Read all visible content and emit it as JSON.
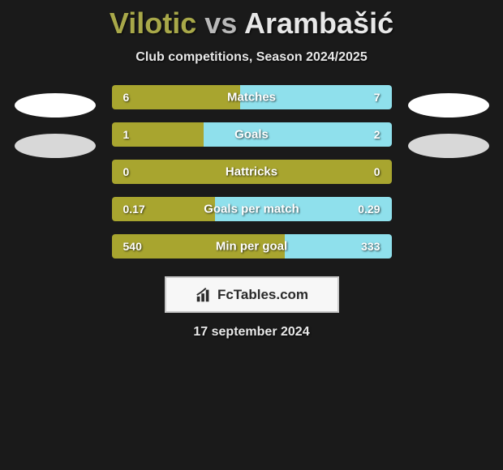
{
  "title": {
    "player1": "Vilotic",
    "vs": "vs",
    "player2": "Arambašić"
  },
  "subtitle": "Club competitions, Season 2024/2025",
  "colors": {
    "player1": "#a8a52f",
    "player2": "#8fe0ec",
    "player1_light": "#b8b849",
    "background": "#1a1a1a",
    "ellipse_white": "#ffffff",
    "ellipse_gray": "#d8d8d8"
  },
  "bars": [
    {
      "label": "Matches",
      "left_val": "6",
      "right_val": "7",
      "left_pct": 46,
      "right_pct": 54
    },
    {
      "label": "Goals",
      "left_val": "1",
      "right_val": "2",
      "left_pct": 33,
      "right_pct": 67
    },
    {
      "label": "Hattricks",
      "left_val": "0",
      "right_val": "0",
      "left_pct": 100,
      "right_pct": 0
    },
    {
      "label": "Goals per match",
      "left_val": "0.17",
      "right_val": "0.29",
      "left_pct": 37,
      "right_pct": 63
    },
    {
      "label": "Min per goal",
      "left_val": "540",
      "right_val": "333",
      "left_pct": 62,
      "right_pct": 38
    }
  ],
  "logo": {
    "text": "FcTables.com"
  },
  "date": "17 september 2024"
}
